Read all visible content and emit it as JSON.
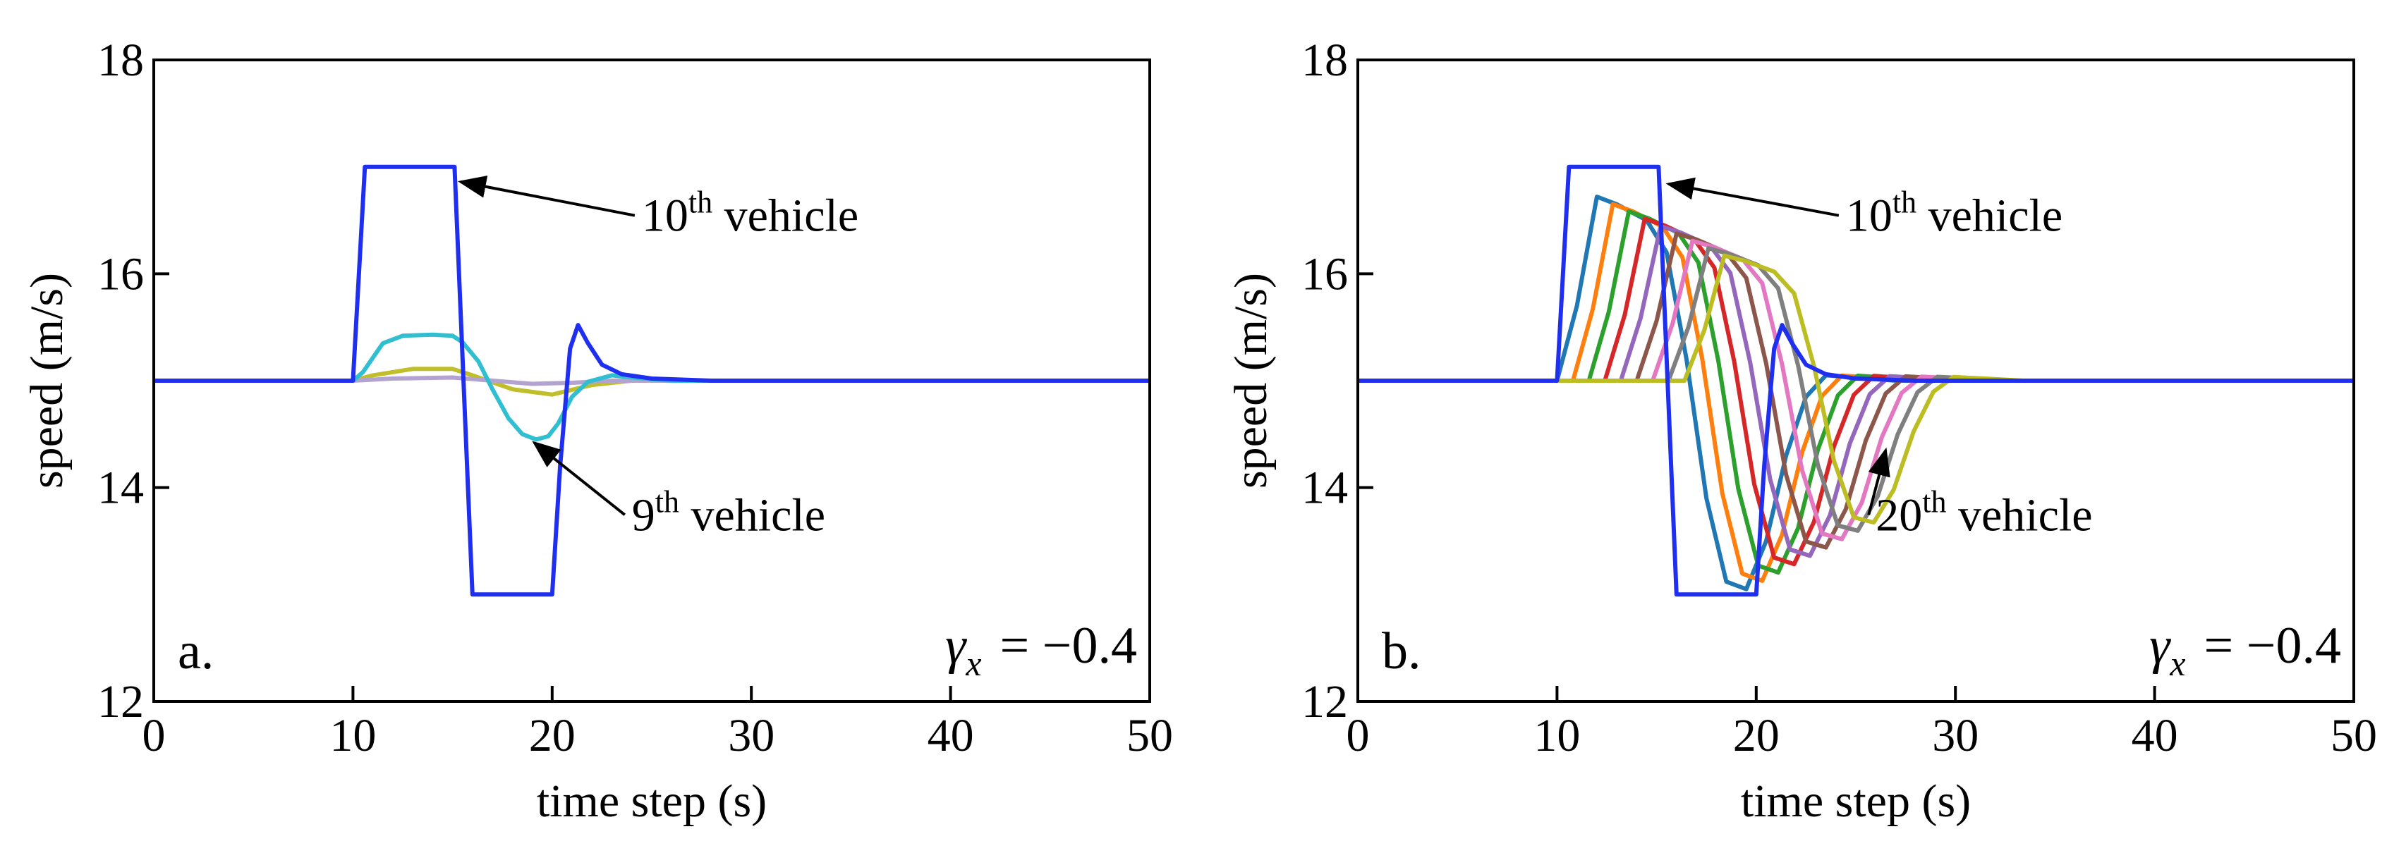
{
  "chart_data": [
    {
      "type": "line",
      "panel_label": "a.",
      "xlabel": "time step (s)",
      "ylabel": "speed (m/s)",
      "xlim": [
        0,
        50
      ],
      "ylim": [
        12,
        18
      ],
      "xticks": [
        0,
        10,
        20,
        30,
        40,
        50
      ],
      "yticks": [
        12,
        14,
        16,
        18
      ],
      "grid": false,
      "parameter": {
        "symbol": "γ",
        "subscript": "x",
        "equals": "= −0.4"
      },
      "annotations": [
        {
          "base": "10",
          "sup": "th",
          "text": " vehicle",
          "text_at": [
            24.5,
            16.4
          ],
          "arrow_to": [
            15.4,
            16.86
          ]
        },
        {
          "base": "9",
          "sup": "th",
          "text": " vehicle",
          "text_at": [
            24,
            13.6
          ],
          "arrow_to": [
            19.1,
            14.42
          ]
        }
      ],
      "series": [
        {
          "color": "#c0bf2b",
          "points": [
            [
              0,
              15
            ],
            [
              10,
              15
            ],
            [
              11,
              15.05
            ],
            [
              13,
              15.11
            ],
            [
              15,
              15.11
            ],
            [
              16,
              15.05
            ],
            [
              18,
              14.92
            ],
            [
              20,
              14.87
            ],
            [
              22,
              14.96
            ],
            [
              24,
              15
            ],
            [
              50,
              15
            ]
          ]
        },
        {
          "color": "#b3a3d0",
          "points": [
            [
              0,
              15
            ],
            [
              10,
              15
            ],
            [
              12,
              15.02
            ],
            [
              15,
              15.03
            ],
            [
              17,
              15
            ],
            [
              19,
              14.97
            ],
            [
              21,
              14.98
            ],
            [
              23,
              15
            ],
            [
              50,
              15
            ]
          ]
        },
        {
          "color": "#2fbfd1",
          "points": [
            [
              0,
              15
            ],
            [
              10,
              15
            ],
            [
              10.5,
              15.08
            ],
            [
              11.5,
              15.35
            ],
            [
              12.5,
              15.42
            ],
            [
              14,
              15.43
            ],
            [
              15,
              15.42
            ],
            [
              15.5,
              15.36
            ],
            [
              16.3,
              15.18
            ],
            [
              17,
              14.92
            ],
            [
              17.8,
              14.65
            ],
            [
              18.5,
              14.5
            ],
            [
              19.2,
              14.45
            ],
            [
              19.8,
              14.48
            ],
            [
              20.3,
              14.6
            ],
            [
              21,
              14.85
            ],
            [
              21.8,
              14.99
            ],
            [
              23,
              15.05
            ],
            [
              24,
              15.03
            ],
            [
              26,
              15
            ],
            [
              50,
              15
            ]
          ]
        },
        {
          "color": "#1f2ff0",
          "points": [
            [
              0,
              15
            ],
            [
              10,
              15
            ],
            [
              10.6,
              17
            ],
            [
              15.1,
              17
            ],
            [
              16,
              13
            ],
            [
              20,
              13
            ],
            [
              20.4,
              14.2
            ],
            [
              20.9,
              15.3
            ],
            [
              21.3,
              15.52
            ],
            [
              21.8,
              15.35
            ],
            [
              22.5,
              15.15
            ],
            [
              23.5,
              15.06
            ],
            [
              25,
              15.02
            ],
            [
              28,
              15
            ],
            [
              50,
              15
            ]
          ]
        }
      ]
    },
    {
      "type": "line",
      "panel_label": "b.",
      "xlabel": "time step (s)",
      "ylabel": "speed (m/s)",
      "xlim": [
        0,
        50
      ],
      "ylim": [
        12,
        18
      ],
      "xticks": [
        0,
        10,
        20,
        30,
        40,
        50
      ],
      "yticks": [
        12,
        14,
        16,
        18
      ],
      "grid": false,
      "parameter": {
        "symbol": "γ",
        "subscript": "x",
        "equals": "= −0.4"
      },
      "annotations": [
        {
          "base": "10",
          "sup": "th",
          "text": " vehicle",
          "text_at": [
            24.5,
            16.4
          ],
          "arrow_to": [
            15.6,
            16.84
          ]
        },
        {
          "base": "20",
          "sup": "th",
          "text": " vehicle",
          "text_at": [
            26,
            13.6
          ],
          "arrow_to": [
            26.5,
            14.35
          ]
        }
      ],
      "series": [
        {
          "color": "#1f2ff0",
          "points": [
            [
              0,
              15
            ],
            [
              10,
              15
            ],
            [
              10.6,
              17
            ],
            [
              15.1,
              17
            ],
            [
              16,
              13
            ],
            [
              20,
              13
            ],
            [
              20.4,
              14.2
            ],
            [
              20.9,
              15.3
            ],
            [
              21.3,
              15.52
            ],
            [
              21.8,
              15.35
            ],
            [
              22.5,
              15.15
            ],
            [
              23.5,
              15.06
            ],
            [
              25,
              15.02
            ],
            [
              28,
              15
            ],
            [
              50,
              15
            ]
          ]
        }
      ],
      "family": {
        "shape": [
          [
            0,
            15
          ],
          [
            10,
            15
          ],
          [
            11,
            15.7
          ],
          [
            12,
            16.72
          ],
          [
            13,
            16.65
          ],
          [
            14.5,
            16.5
          ],
          [
            15.5,
            16.2
          ],
          [
            16.5,
            15.2
          ],
          [
            17.5,
            13.9
          ],
          [
            18.5,
            13.12
          ],
          [
            19.5,
            13.05
          ],
          [
            20.5,
            13.5
          ],
          [
            21.5,
            14.3
          ],
          [
            22.5,
            14.85
          ],
          [
            23.5,
            15.05
          ],
          [
            25,
            15.03
          ],
          [
            27,
            15
          ],
          [
            50,
            15
          ]
        ],
        "step": 0.8,
        "colors": [
          "#1f77b4",
          "#ff7f0e",
          "#2ca02c",
          "#d62728",
          "#9467bd",
          "#8c564b",
          "#e377c2",
          "#7f7f7f",
          "#bcbd22"
        ]
      }
    }
  ]
}
